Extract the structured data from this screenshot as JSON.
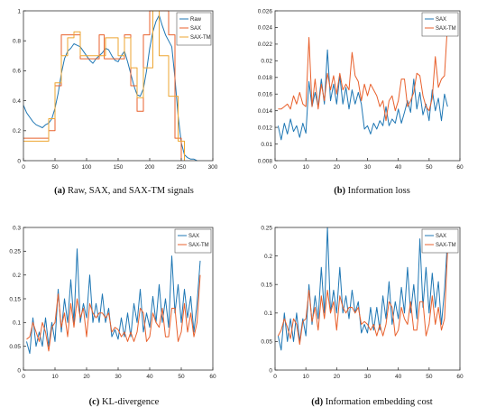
{
  "figure": {
    "captions": [
      {
        "letter": "(a)",
        "text": "Raw, SAX, and SAX-TM signals"
      },
      {
        "letter": "(b)",
        "text": "Information loss"
      },
      {
        "letter": "(c)",
        "text": "KL-divergence"
      },
      {
        "letter": "(d)",
        "text": "Information embedding cost"
      }
    ]
  },
  "colors": {
    "blue": "#1f77b4",
    "orange": "#e8602c",
    "yellow": "#eda531",
    "axis": "#333333"
  },
  "chart_data": [
    {
      "type": "line",
      "title": "",
      "xlim": [
        0,
        300
      ],
      "ylim": [
        0,
        1
      ],
      "xticks": [
        0,
        50,
        100,
        150,
        200,
        250,
        300
      ],
      "yticks": [
        0,
        0.2,
        0.4,
        0.6,
        0.8,
        1
      ],
      "ytick_labels": [
        "0",
        "0.2",
        "0.4",
        "0.6",
        "0.8",
        "1"
      ],
      "legend_position": "top-right",
      "series": [
        {
          "name": "Raw",
          "color": "#1f77b4",
          "step": false,
          "x": [
            0,
            5,
            10,
            15,
            20,
            25,
            30,
            35,
            40,
            45,
            50,
            55,
            60,
            65,
            70,
            75,
            80,
            85,
            90,
            95,
            100,
            105,
            110,
            115,
            120,
            125,
            130,
            135,
            140,
            145,
            150,
            155,
            160,
            165,
            170,
            175,
            180,
            185,
            190,
            195,
            200,
            205,
            210,
            215,
            220,
            225,
            230,
            235,
            240,
            245,
            250,
            255,
            260,
            265,
            270,
            275
          ],
          "y": [
            0.37,
            0.32,
            0.29,
            0.26,
            0.24,
            0.23,
            0.22,
            0.24,
            0.25,
            0.28,
            0.35,
            0.45,
            0.58,
            0.68,
            0.73,
            0.75,
            0.78,
            0.77,
            0.76,
            0.73,
            0.7,
            0.67,
            0.65,
            0.68,
            0.7,
            0.72,
            0.75,
            0.74,
            0.7,
            0.67,
            0.66,
            0.7,
            0.73,
            0.66,
            0.58,
            0.5,
            0.44,
            0.43,
            0.48,
            0.6,
            0.75,
            0.86,
            0.93,
            0.97,
            0.9,
            0.84,
            0.8,
            0.76,
            0.55,
            0.3,
            0.12,
            0.04,
            0.02,
            0.01,
            0.01,
            0.0
          ]
        },
        {
          "name": "SAX",
          "color": "#e8602c",
          "step": true,
          "x": [
            0,
            40,
            50,
            60,
            65,
            80,
            90,
            120,
            128,
            140,
            160,
            170,
            180,
            190,
            200,
            230,
            240,
            250
          ],
          "y": [
            0.15,
            0.2,
            0.5,
            0.84,
            0.84,
            0.84,
            0.68,
            0.84,
            0.68,
            0.68,
            0.84,
            0.5,
            0.33,
            0.84,
            1.0,
            0.84,
            0.15,
            0.0
          ]
        },
        {
          "name": "SAX-TM",
          "color": "#eda531",
          "step": true,
          "x": [
            0,
            40,
            50,
            60,
            70,
            80,
            90,
            120,
            130,
            150,
            160,
            170,
            180,
            190,
            205,
            215,
            230,
            245,
            255
          ],
          "y": [
            0.13,
            0.28,
            0.52,
            0.7,
            0.82,
            0.86,
            0.7,
            0.7,
            0.82,
            0.7,
            0.82,
            0.62,
            0.42,
            0.62,
            1.0,
            0.7,
            0.43,
            0.13,
            0.0
          ]
        }
      ]
    },
    {
      "type": "line",
      "title": "",
      "xlim": [
        0,
        60
      ],
      "ylim": [
        0.008,
        0.026
      ],
      "xticks": [
        0,
        10,
        20,
        30,
        40,
        50,
        60
      ],
      "yticks": [
        0.008,
        0.01,
        0.012,
        0.014,
        0.016,
        0.018,
        0.02,
        0.022,
        0.024,
        0.026
      ],
      "ytick_labels": [
        "0.008",
        "0.01",
        "0.012",
        "0.014",
        "0.016",
        "0.018",
        "0.02",
        "0.022",
        "0.024",
        "0.026"
      ],
      "legend_position": "top-right",
      "x": [
        1,
        2,
        3,
        4,
        5,
        6,
        7,
        8,
        9,
        10,
        11,
        12,
        13,
        14,
        15,
        16,
        17,
        18,
        19,
        20,
        21,
        22,
        23,
        24,
        25,
        26,
        27,
        28,
        29,
        30,
        31,
        32,
        33,
        34,
        35,
        36,
        37,
        38,
        39,
        40,
        41,
        42,
        43,
        44,
        45,
        46,
        47,
        48,
        49,
        50,
        51,
        52,
        53,
        54,
        55,
        56
      ],
      "series": [
        {
          "name": "SAX",
          "color": "#1f77b4",
          "y": [
            0.0122,
            0.0105,
            0.0125,
            0.0112,
            0.013,
            0.0115,
            0.0122,
            0.0108,
            0.0125,
            0.0113,
            0.0175,
            0.0145,
            0.0162,
            0.0145,
            0.0178,
            0.0148,
            0.0213,
            0.0152,
            0.0172,
            0.0148,
            0.0182,
            0.0148,
            0.0168,
            0.0142,
            0.0165,
            0.0148,
            0.0162,
            0.0148,
            0.0118,
            0.0122,
            0.0112,
            0.0125,
            0.0118,
            0.0128,
            0.0122,
            0.0145,
            0.0122,
            0.013,
            0.0125,
            0.0142,
            0.0125,
            0.0138,
            0.0152,
            0.0138,
            0.0178,
            0.0142,
            0.0162,
            0.0135,
            0.0148,
            0.0128,
            0.0165,
            0.014,
            0.0155,
            0.0128,
            0.016,
            0.0145
          ]
        },
        {
          "name": "SAX-TM",
          "color": "#e8602c",
          "y": [
            0.0142,
            0.0142,
            0.0145,
            0.0148,
            0.0142,
            0.0158,
            0.0148,
            0.0162,
            0.0148,
            0.0145,
            0.0228,
            0.0145,
            0.0178,
            0.0142,
            0.0172,
            0.0152,
            0.0185,
            0.0165,
            0.0182,
            0.016,
            0.0185,
            0.0165,
            0.0172,
            0.0165,
            0.021,
            0.0182,
            0.0175,
            0.0152,
            0.0172,
            0.0158,
            0.0172,
            0.0165,
            0.0158,
            0.0145,
            0.0152,
            0.0128,
            0.0152,
            0.0158,
            0.014,
            0.0152,
            0.0178,
            0.0178,
            0.0145,
            0.0152,
            0.0162,
            0.0185,
            0.0182,
            0.0158,
            0.0145,
            0.014,
            0.0155,
            0.0205,
            0.0168,
            0.0178,
            0.0182,
            0.0245
          ]
        }
      ]
    },
    {
      "type": "line",
      "title": "",
      "xlim": [
        0,
        60
      ],
      "ylim": [
        0,
        0.3
      ],
      "xticks": [
        0,
        10,
        20,
        30,
        40,
        50,
        60
      ],
      "yticks": [
        0,
        0.05,
        0.1,
        0.15,
        0.2,
        0.25,
        0.3
      ],
      "ytick_labels": [
        "0",
        "0.05",
        "0.1",
        "0.15",
        "0.2",
        "0.25",
        "0.3"
      ],
      "legend_position": "top-right",
      "x": [
        1,
        2,
        3,
        4,
        5,
        6,
        7,
        8,
        9,
        10,
        11,
        12,
        13,
        14,
        15,
        16,
        17,
        18,
        19,
        20,
        21,
        22,
        23,
        24,
        25,
        26,
        27,
        28,
        29,
        30,
        31,
        32,
        33,
        34,
        35,
        36,
        37,
        38,
        39,
        40,
        41,
        42,
        43,
        44,
        45,
        46,
        47,
        48,
        49,
        50,
        51,
        52,
        53,
        54,
        55,
        56
      ],
      "series": [
        {
          "name": "SAX",
          "color": "#1f77b4",
          "y": [
            0.06,
            0.035,
            0.11,
            0.05,
            0.08,
            0.05,
            0.11,
            0.05,
            0.1,
            0.06,
            0.17,
            0.08,
            0.15,
            0.1,
            0.19,
            0.1,
            0.255,
            0.1,
            0.14,
            0.11,
            0.2,
            0.1,
            0.14,
            0.1,
            0.16,
            0.1,
            0.13,
            0.07,
            0.085,
            0.065,
            0.11,
            0.07,
            0.12,
            0.07,
            0.14,
            0.1,
            0.17,
            0.08,
            0.12,
            0.09,
            0.155,
            0.1,
            0.18,
            0.1,
            0.15,
            0.09,
            0.24,
            0.12,
            0.18,
            0.1,
            0.17,
            0.11,
            0.155,
            0.08,
            0.14,
            0.23
          ]
        },
        {
          "name": "SAX-TM",
          "color": "#e8602c",
          "y": [
            0.065,
            0.07,
            0.1,
            0.08,
            0.06,
            0.1,
            0.08,
            0.04,
            0.09,
            0.1,
            0.16,
            0.09,
            0.12,
            0.07,
            0.14,
            0.09,
            0.15,
            0.11,
            0.13,
            0.07,
            0.14,
            0.12,
            0.11,
            0.12,
            0.12,
            0.11,
            0.12,
            0.08,
            0.09,
            0.085,
            0.07,
            0.08,
            0.06,
            0.08,
            0.06,
            0.08,
            0.13,
            0.12,
            0.06,
            0.07,
            0.12,
            0.1,
            0.09,
            0.13,
            0.07,
            0.07,
            0.13,
            0.13,
            0.06,
            0.08,
            0.14,
            0.08,
            0.12,
            0.07,
            0.1,
            0.2
          ]
        }
      ]
    },
    {
      "type": "line",
      "title": "",
      "xlim": [
        0,
        60
      ],
      "ylim": [
        0,
        0.25
      ],
      "xticks": [
        0,
        10,
        20,
        30,
        40,
        50,
        60
      ],
      "yticks": [
        0,
        0.05,
        0.1,
        0.15,
        0.2,
        0.25
      ],
      "ytick_labels": [
        "0",
        "0.05",
        "0.1",
        "0.15",
        "0.2",
        "0.25"
      ],
      "legend_position": "top-right",
      "x": [
        1,
        2,
        3,
        4,
        5,
        6,
        7,
        8,
        9,
        10,
        11,
        12,
        13,
        14,
        15,
        16,
        17,
        18,
        19,
        20,
        21,
        22,
        23,
        24,
        25,
        26,
        27,
        28,
        29,
        30,
        31,
        32,
        33,
        34,
        35,
        36,
        37,
        38,
        39,
        40,
        41,
        42,
        43,
        44,
        45,
        46,
        47,
        48,
        49,
        50,
        51,
        52,
        53,
        54,
        55,
        56
      ],
      "series": [
        {
          "name": "SAX",
          "color": "#1f77b4",
          "y": [
            0.06,
            0.035,
            0.1,
            0.05,
            0.09,
            0.05,
            0.1,
            0.05,
            0.09,
            0.06,
            0.15,
            0.08,
            0.13,
            0.09,
            0.18,
            0.1,
            0.25,
            0.1,
            0.14,
            0.1,
            0.18,
            0.1,
            0.13,
            0.09,
            0.14,
            0.1,
            0.12,
            0.065,
            0.08,
            0.065,
            0.11,
            0.07,
            0.11,
            0.07,
            0.13,
            0.09,
            0.155,
            0.08,
            0.12,
            0.09,
            0.145,
            0.1,
            0.18,
            0.1,
            0.15,
            0.09,
            0.23,
            0.11,
            0.18,
            0.1,
            0.17,
            0.11,
            0.155,
            0.08,
            0.14,
            0.23
          ]
        },
        {
          "name": "SAX-TM",
          "color": "#e8602c",
          "y": [
            0.06,
            0.07,
            0.09,
            0.075,
            0.055,
            0.09,
            0.08,
            0.045,
            0.085,
            0.09,
            0.14,
            0.085,
            0.11,
            0.07,
            0.13,
            0.09,
            0.14,
            0.1,
            0.12,
            0.07,
            0.13,
            0.11,
            0.1,
            0.11,
            0.11,
            0.1,
            0.11,
            0.08,
            0.085,
            0.08,
            0.07,
            0.08,
            0.06,
            0.08,
            0.06,
            0.08,
            0.12,
            0.11,
            0.06,
            0.07,
            0.11,
            0.09,
            0.08,
            0.12,
            0.07,
            0.07,
            0.12,
            0.12,
            0.06,
            0.08,
            0.13,
            0.08,
            0.11,
            0.07,
            0.09,
            0.21
          ]
        }
      ]
    }
  ]
}
